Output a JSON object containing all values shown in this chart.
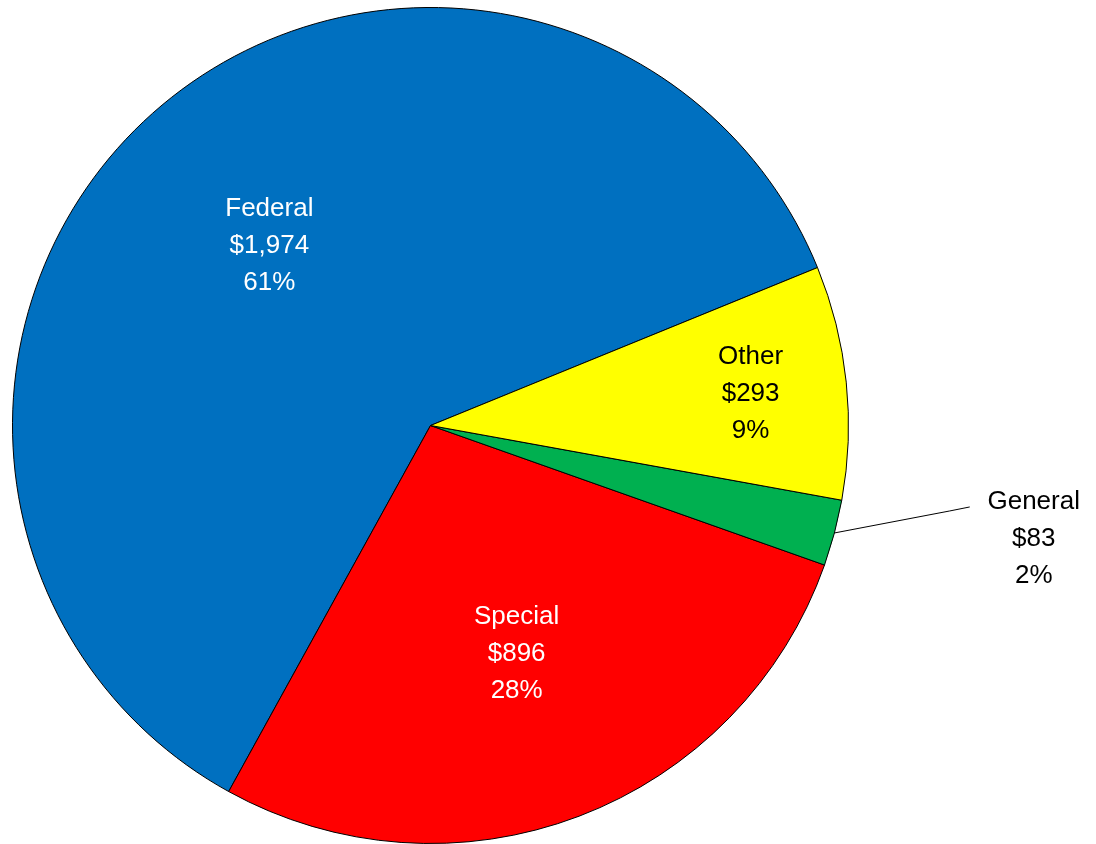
{
  "chart_data": {
    "type": "pie",
    "categories": [
      "Federal",
      "Special",
      "General",
      "Other"
    ],
    "values": [
      1974,
      896,
      83,
      293
    ],
    "colors": [
      "#0070c0",
      "#ff0000",
      "#00b050",
      "#ffff00"
    ],
    "value_labels": [
      "$1,974\n61%",
      "$896\n28%",
      "$83\n2%",
      "$293\n9%"
    ]
  }
}
